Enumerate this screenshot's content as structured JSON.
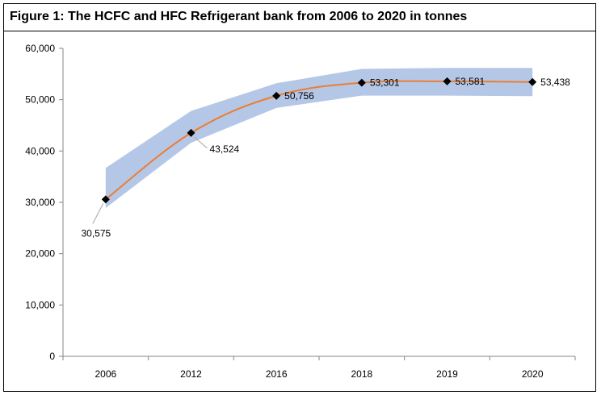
{
  "figure": {
    "title": "Figure 1: The HCFC and HFC Refrigerant bank from 2006 to 2020 in tonnes"
  },
  "chart_data": {
    "type": "line",
    "title": "Figure 1: The HCFC and HFC Refrigerant bank from 2006 to 2020 in tonnes",
    "xlabel": "",
    "ylabel": "",
    "categories": [
      "2006",
      "2012",
      "2016",
      "2018",
      "2019",
      "2020"
    ],
    "series": [
      {
        "name": "Refrigerant bank",
        "values": [
          30575,
          43524,
          50756,
          53301,
          53581,
          53438
        ],
        "labels": [
          "30,575",
          "43,524",
          "50,756",
          "53,301",
          "53,581",
          "53,438"
        ],
        "color": "#ed7d31",
        "marker_color": "#000000"
      }
    ],
    "uncertainty_band": {
      "upper": [
        36700,
        47800,
        53200,
        56000,
        56200,
        56200
      ],
      "lower": [
        28900,
        41600,
        48400,
        50800,
        50800,
        50700
      ],
      "color": "#b4c7e7"
    },
    "y_ticks": [
      0,
      10000,
      20000,
      30000,
      40000,
      50000,
      60000
    ],
    "y_tick_labels": [
      "0",
      "10,000",
      "20,000",
      "30,000",
      "40,000",
      "50,000",
      "60,000"
    ],
    "ylim": [
      0,
      60000
    ],
    "grid": false,
    "legend": "none"
  }
}
